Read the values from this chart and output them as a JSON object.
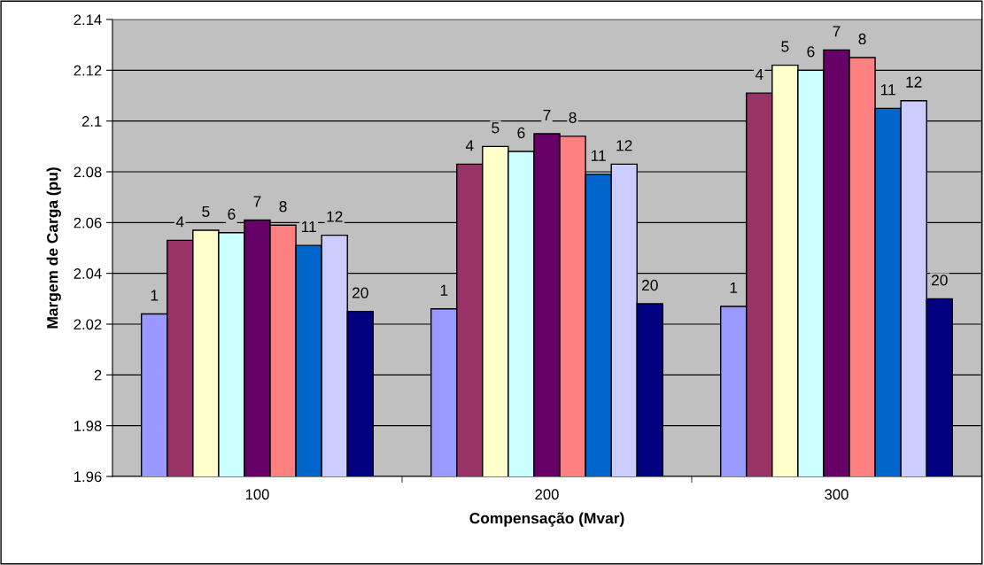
{
  "chart_data": {
    "type": "bar",
    "xlabel": "Compensação (Mvar)",
    "ylabel": "Margem de Carga (pu)",
    "categories": [
      "100",
      "200",
      "300"
    ],
    "ylim": [
      1.96,
      2.14
    ],
    "yticks": [
      1.96,
      1.98,
      {
        "value": 2,
        "label": "2"
      },
      2.02,
      2.04,
      2.06,
      2.08,
      {
        "value": 2.1,
        "label": "2.1"
      },
      2.12,
      2.14
    ],
    "grid": "y",
    "legend": false,
    "series": [
      {
        "name": "1",
        "color": "#9999ff",
        "values": [
          2.024,
          2.026,
          2.027
        ]
      },
      {
        "name": "4",
        "color": "#993366",
        "values": [
          2.053,
          2.083,
          2.111
        ]
      },
      {
        "name": "5",
        "color": "#ffffcc",
        "values": [
          2.057,
          2.09,
          2.122
        ]
      },
      {
        "name": "6",
        "color": "#ccffff",
        "values": [
          2.056,
          2.088,
          2.12
        ]
      },
      {
        "name": "7",
        "color": "#660066",
        "values": [
          2.061,
          2.095,
          2.128
        ]
      },
      {
        "name": "8",
        "color": "#ff8080",
        "values": [
          2.059,
          2.094,
          2.125
        ]
      },
      {
        "name": "11",
        "color": "#0066cc",
        "values": [
          2.051,
          2.079,
          2.105
        ]
      },
      {
        "name": "12",
        "color": "#ccccff",
        "values": [
          2.055,
          2.083,
          2.108
        ]
      },
      {
        "name": "20",
        "color": "#000080",
        "values": [
          2.025,
          2.028,
          2.03
        ]
      }
    ]
  }
}
